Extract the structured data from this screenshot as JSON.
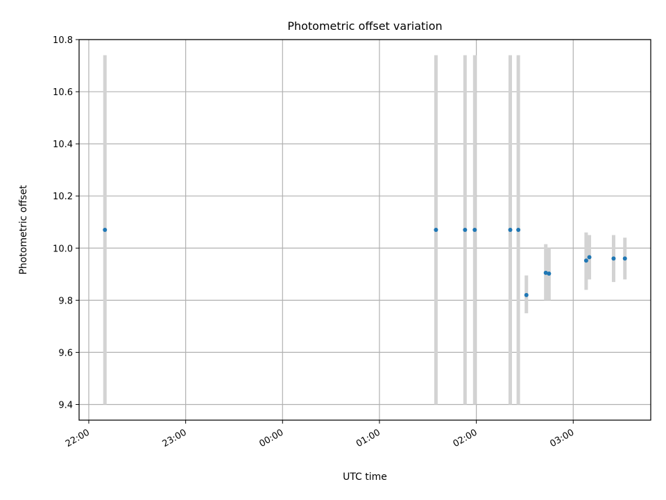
{
  "chart_data": {
    "type": "scatter",
    "title": "Photometric offset variation",
    "xlabel": "UTC time",
    "ylabel": "Photometric offset",
    "x_ticks": [
      "22:00",
      "23:00",
      "00:00",
      "01:00",
      "02:00",
      "03:00"
    ],
    "x_tick_hours": [
      0,
      1,
      2,
      3,
      4,
      5
    ],
    "x_origin_label": "22:00",
    "xlim_hours": [
      -0.1,
      5.8
    ],
    "y_ticks": [
      "9.4",
      "9.6",
      "9.8",
      "10.0",
      "10.2",
      "10.4",
      "10.6",
      "10.8"
    ],
    "ylim": [
      9.34,
      10.8
    ],
    "grid": true,
    "marker_color": "#1f77b4",
    "errorbar_color": "#d3d3d3",
    "points": [
      {
        "time": "22:10",
        "y": 10.07,
        "ylow": 9.4,
        "yhigh": 10.74
      },
      {
        "time": "01:35",
        "y": 10.07,
        "ylow": 9.4,
        "yhigh": 10.74
      },
      {
        "time": "01:53",
        "y": 10.07,
        "ylow": 9.4,
        "yhigh": 10.74
      },
      {
        "time": "01:59",
        "y": 10.07,
        "ylow": 9.4,
        "yhigh": 10.74
      },
      {
        "time": "02:21",
        "y": 10.07,
        "ylow": 9.4,
        "yhigh": 10.74
      },
      {
        "time": "02:26",
        "y": 10.07,
        "ylow": 9.4,
        "yhigh": 10.74
      },
      {
        "time": "02:31",
        "y": 9.82,
        "ylow": 9.75,
        "yhigh": 9.895
      },
      {
        "time": "02:43",
        "y": 9.905,
        "ylow": 9.8,
        "yhigh": 10.015
      },
      {
        "time": "02:45",
        "y": 9.902,
        "ylow": 9.8,
        "yhigh": 10.0
      },
      {
        "time": "03:08",
        "y": 9.952,
        "ylow": 9.84,
        "yhigh": 10.06
      },
      {
        "time": "03:10",
        "y": 9.965,
        "ylow": 9.88,
        "yhigh": 10.05
      },
      {
        "time": "03:25",
        "y": 9.96,
        "ylow": 9.87,
        "yhigh": 10.05
      },
      {
        "time": "03:32",
        "y": 9.96,
        "ylow": 9.88,
        "yhigh": 10.04
      }
    ]
  }
}
